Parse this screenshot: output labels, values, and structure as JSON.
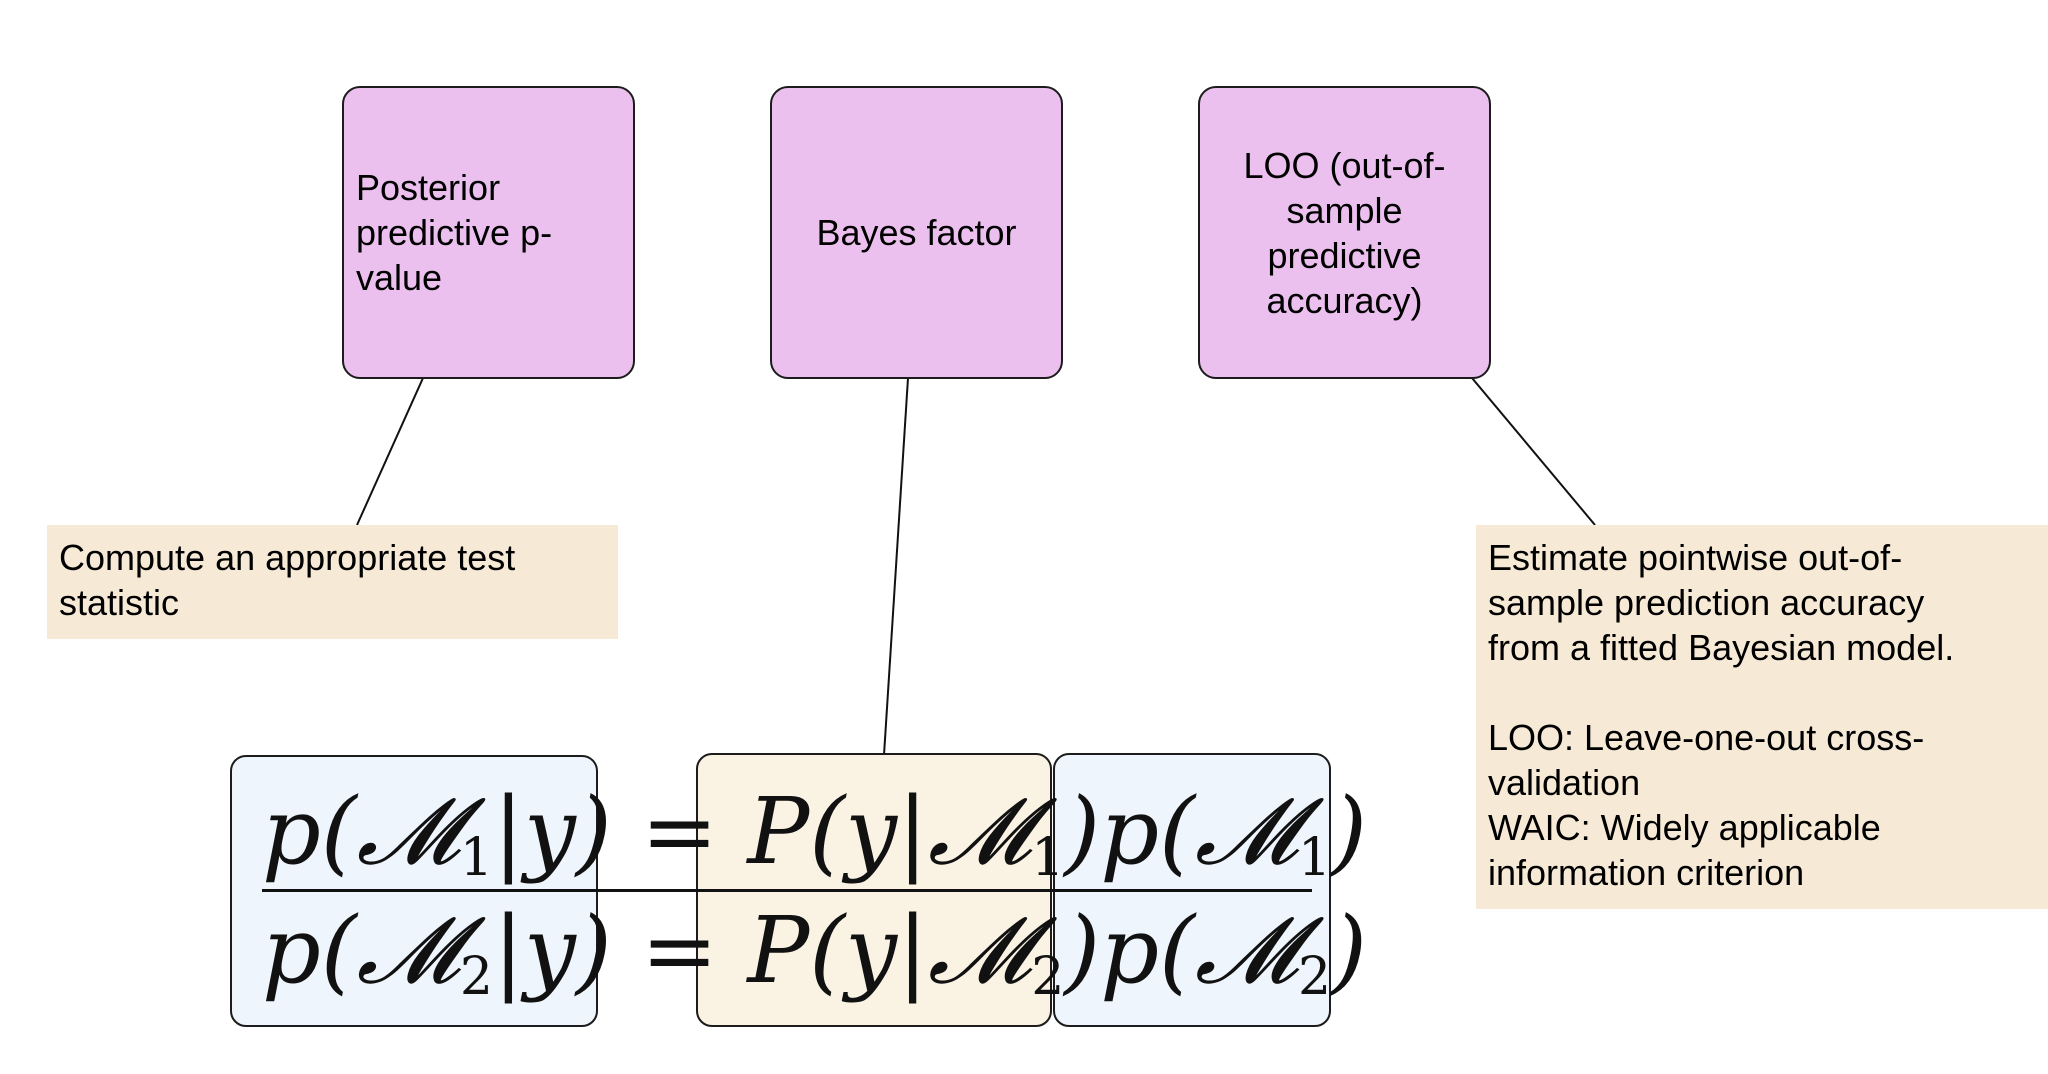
{
  "boxes": {
    "posterior_predictive": "Posterior\npredictive p-\nvalue",
    "bayes_factor": "Bayes factor",
    "loo": "LOO (out-of-\nsample\npredictive\naccuracy)"
  },
  "notes": {
    "test_statistic": "Compute an appropriate test\nstatistic",
    "loo_detail": "Estimate pointwise out-of-\nsample prediction accuracy\nfrom a fitted Bayesian model.\n\nLOO: Leave-one-out cross-\nvalidation\nWAIC: Widely applicable\ninformation criterion"
  },
  "equation": {
    "numerator": {
      "posterior": "p(𝓜",
      "posterior_sub": "1",
      "posterior_end": "|y)",
      "equals": " = ",
      "likelihood": "P(y|𝓜",
      "likelihood_sub": "1",
      "likelihood_end": ")",
      "prior": "p(𝓜",
      "prior_sub": "1",
      "prior_end": ")"
    },
    "denominator": {
      "posterior": "p(𝓜",
      "posterior_sub": "2",
      "posterior_end": "|y)",
      "equals": " = ",
      "likelihood": "P(y|𝓜",
      "likelihood_sub": "2",
      "likelihood_end": ")",
      "prior": "p(𝓜",
      "prior_sub": "2",
      "prior_end": ")"
    }
  },
  "colors": {
    "box_fill": "#ebc0ee",
    "note_fill": "#f6ead6",
    "eq_blue": "#eef5fc",
    "eq_cream": "#faf3e4"
  }
}
